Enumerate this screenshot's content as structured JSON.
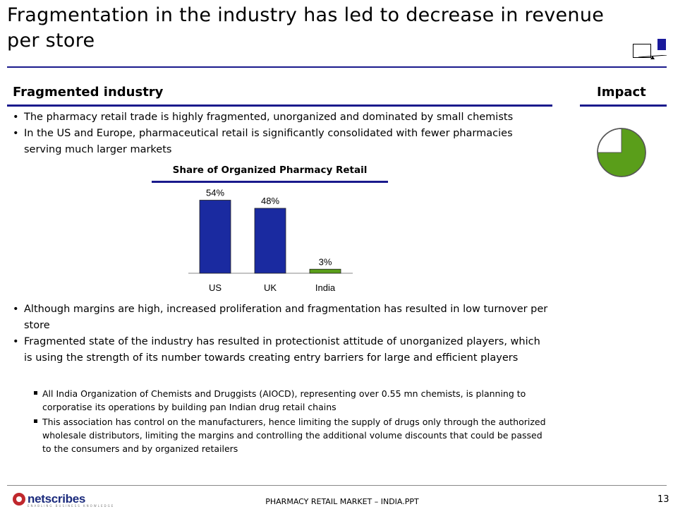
{
  "slide": {
    "title": "Fragmentation in the industry has led to decrease in revenue per store",
    "page_number": "13",
    "footer": "PHARMACY RETAIL MARKET – INDIA.PPT",
    "brand": "netscribes",
    "brand_tagline": "ENABLING BUSINESS KNOWLEDGE"
  },
  "left_section": {
    "heading": "Fragmented industry",
    "bullets_top": [
      "The pharmacy retail trade is highly fragmented, unorganized and dominated by small chemists",
      "In the US and Europe, pharmaceutical retail is significantly consolidated with fewer pharmacies serving much larger markets"
    ],
    "bullets_bottom": [
      "Although margins are high, increased proliferation and fragmentation has resulted in low turnover per store",
      "Fragmented state of the industry has resulted in protectionist attitude of unorganized players, which is using the strength of its number towards creating entry barriers for large and efficient players"
    ],
    "sub_bullets": [
      "All India Organization of Chemists and Druggists (AIOCD), representing over 0.55 mn chemists, is planning  to corporatise its operations by building pan Indian drug retail chains",
      "This association has control on the manufacturers, hence limiting the supply of drugs only through the authorized wholesale distributors, limiting the margins and controlling the additional volume discounts that could be passed to the consumers and by organized retailers"
    ]
  },
  "impact": {
    "heading": "Impact",
    "level_fraction": 0.75,
    "fill_color": "#5a9e1a"
  },
  "chart_data": {
    "type": "bar",
    "title": "Share of Organized Pharmacy Retail",
    "categories": [
      "US",
      "UK",
      "India"
    ],
    "values": [
      54,
      48,
      3
    ],
    "data_labels": [
      "54%",
      "48%",
      "3%"
    ],
    "colors": [
      "#1a2aa0",
      "#1a2aa0",
      "#5a9e1a"
    ],
    "xlabel": "",
    "ylabel": "",
    "ylim": [
      0,
      60
    ]
  }
}
